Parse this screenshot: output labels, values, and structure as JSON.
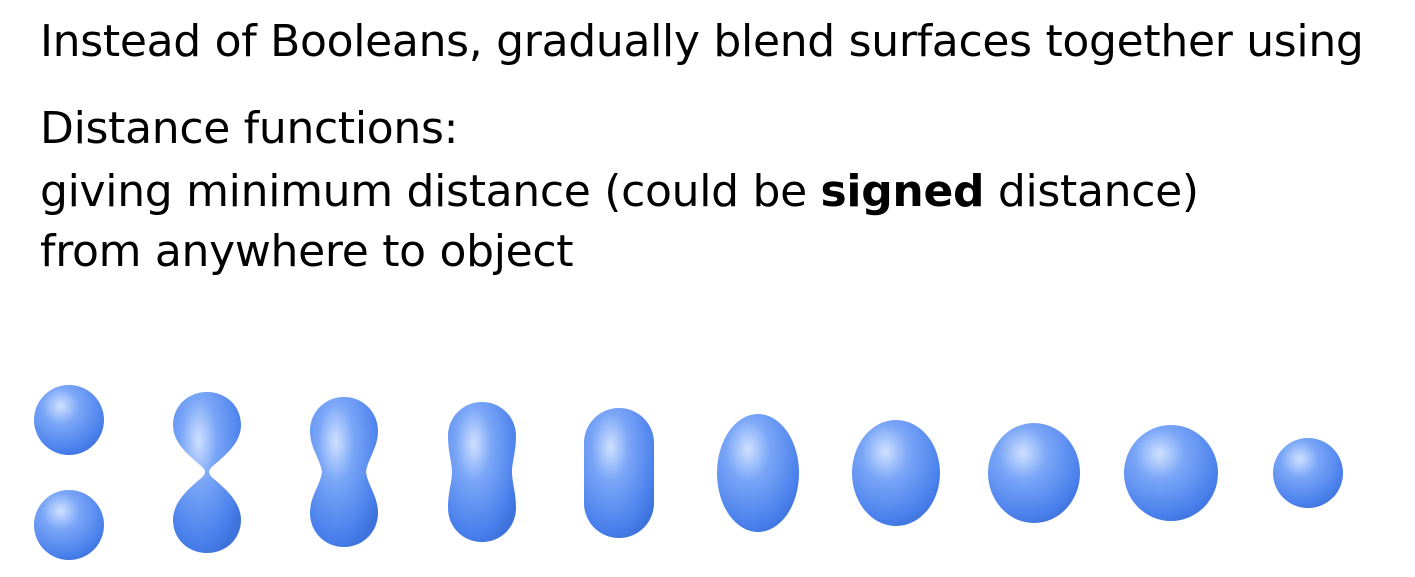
{
  "slide": {
    "line1": "Instead of Booleans, gradually blend surfaces together using",
    "line2": "Distance functions:",
    "line3": {
      "before": "giving minimum distance (could be ",
      "emphasis": "signed",
      "after": " distance)"
    },
    "line4": "from anywhere to object"
  },
  "illustration": {
    "shape_color": "#5b8ef0",
    "highlight_color": "#cfe0ff",
    "stage_count": 10
  }
}
